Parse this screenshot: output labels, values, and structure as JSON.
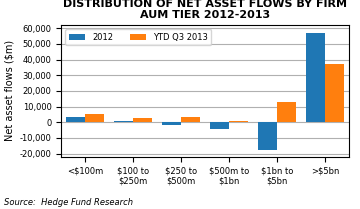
{
  "chart_data": {
    "type": "bar",
    "title": "DISTRIBUTION OF NET ASSET FLOWS BY FIRM AUM TIER 2012-2013",
    "categories": [
      "<$100m",
      "$100 to $250m",
      "$250 to $500m",
      "$500m to $1bn",
      "$1bn to $5bn",
      ">$5bn"
    ],
    "series": [
      {
        "name": "2012",
        "values": [
          3500,
          1000,
          -1500,
          -4500,
          -18000,
          57000
        ]
      },
      {
        "name": "YTD Q3 2013",
        "values": [
          5000,
          3000,
          3500,
          1000,
          13000,
          37000
        ]
      }
    ],
    "ylabel": "Net asset flows ($m)",
    "ylim": [
      -22000,
      62000
    ],
    "yticks": [
      {
        "value": -20000,
        "label": "-20,000"
      },
      {
        "value": -10000,
        "label": "-10,000"
      },
      0,
      {
        "value": 10000,
        "label": "10,000"
      },
      {
        "value": 20000,
        "label": "20,000"
      },
      {
        "value": 30000,
        "label": "30,000"
      },
      {
        "value": 40000,
        "label": "40,000"
      },
      {
        "value": 50000,
        "label": "50,000"
      },
      {
        "value": 60000,
        "label": "60,000"
      }
    ],
    "source": "Source:  Hedge Fund Research",
    "grid": true,
    "legend": "upper left"
  }
}
